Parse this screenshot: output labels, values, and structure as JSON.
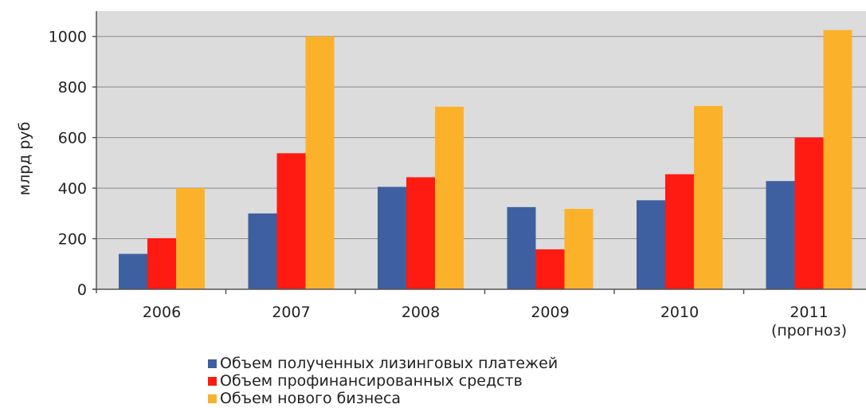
{
  "chart_data": {
    "type": "bar",
    "categories": [
      [
        "2006"
      ],
      [
        "2007"
      ],
      [
        "2008"
      ],
      [
        "2009"
      ],
      [
        "2010"
      ],
      [
        "2011",
        "(прогноз)"
      ]
    ],
    "series": [
      {
        "name": "Объем полученных лизинговых платежей",
        "color": "#3F60A0",
        "values": [
          140,
          300,
          405,
          325,
          352,
          428
        ]
      },
      {
        "name": "Объем профинансированных средств",
        "color": "#FF1A12",
        "values": [
          202,
          538,
          443,
          158,
          455,
          600
        ]
      },
      {
        "name": "Объем нового бизнеса",
        "color": "#FBB22A",
        "values": [
          400,
          1000,
          722,
          318,
          725,
          1025
        ]
      }
    ],
    "ylabel": "млрд руб",
    "xlabel": "",
    "ylim": [
      0,
      1100
    ],
    "yticks": [
      0,
      200,
      400,
      600,
      800,
      1000
    ],
    "grid": true,
    "legend_position": "bottom"
  }
}
